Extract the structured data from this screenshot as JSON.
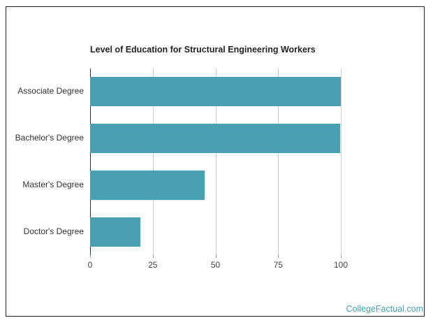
{
  "chart_data": {
    "type": "bar",
    "orientation": "horizontal",
    "title": "Level of Education for Structural Engineering Workers",
    "categories": [
      "Associate Degree",
      "Bachelor's Degree",
      "Master's Degree",
      "Doctor's Degree"
    ],
    "values": [
      100,
      99.7,
      45.7,
      20
    ],
    "xlabel": "",
    "ylabel": "",
    "xlim": [
      0,
      100
    ],
    "xticks": [
      "0",
      "25",
      "50",
      "75",
      "100"
    ],
    "grid": true,
    "legend": null,
    "bar_color": "#4aa0b2"
  },
  "credit": "CollegeFactual.com"
}
